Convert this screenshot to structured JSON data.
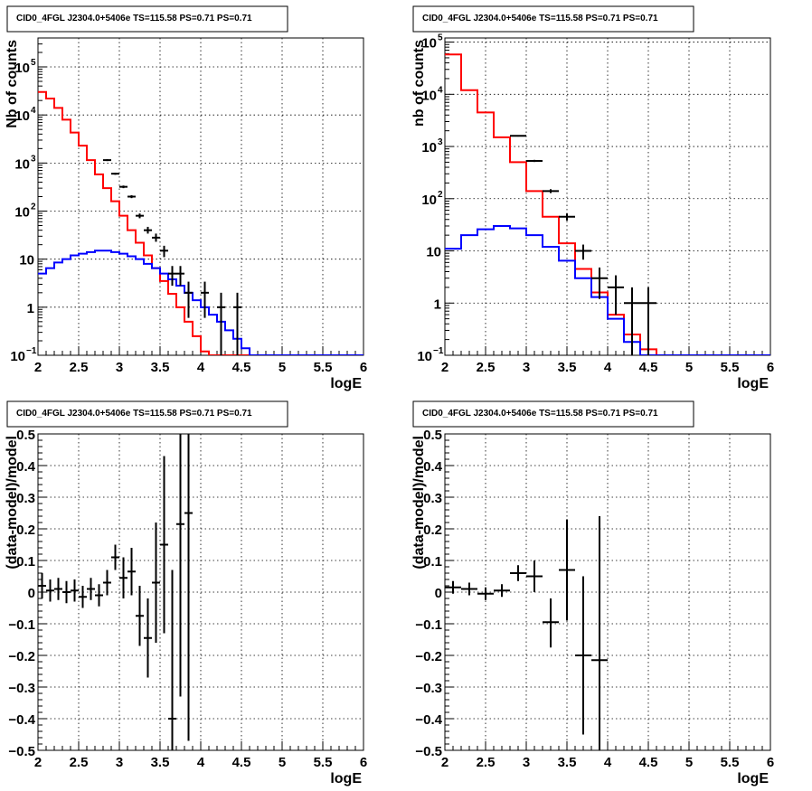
{
  "chart_data": [
    {
      "id": "top-left",
      "type": "line",
      "title": "CID0_4FGL J2304.0+5406e TS=115.58 PS=0.71 PS=0.71",
      "xlabel": "logE",
      "ylabel": "Nb of counts",
      "x_range": [
        2,
        6
      ],
      "y_scale": "log",
      "y_range": [
        0.1,
        400000
      ],
      "x_ticks": [
        "2",
        "2.5",
        "3",
        "3.5",
        "4",
        "4.5",
        "5",
        "5.5",
        "6"
      ],
      "y_ticks": [
        {
          "v": 0.1,
          "base": "10",
          "exp": "−1"
        },
        {
          "v": 1,
          "base": "1",
          "exp": ""
        },
        {
          "v": 10,
          "base": "10",
          "exp": ""
        },
        {
          "v": 100,
          "base": "10",
          "exp": "2"
        },
        {
          "v": 1000,
          "base": "10",
          "exp": "3"
        },
        {
          "v": 10000,
          "base": "10",
          "exp": "4"
        },
        {
          "v": 100000,
          "base": "10",
          "exp": "5"
        }
      ],
      "grid": true,
      "series": [
        {
          "kind": "step",
          "color": "#ff0000",
          "bin_width": 0.1,
          "x_start": 2.0,
          "values": [
            30000,
            22000,
            14000,
            8000,
            4300,
            2300,
            1150,
            580,
            300,
            160,
            80,
            40,
            22,
            12,
            6.5,
            3.5,
            1.9,
            1.0,
            0.5,
            0.25,
            0.12,
            0.1,
            0.1,
            0.1,
            0.1,
            0.1,
            0.1,
            0.1,
            0.1,
            0.1,
            0.1,
            0.1,
            0.1,
            0.1,
            0.1,
            0.1,
            0.1,
            0.1,
            0.1,
            0.1
          ]
        },
        {
          "kind": "step",
          "color": "#0000ff",
          "bin_width": 0.1,
          "x_start": 2.0,
          "values": [
            5,
            6.5,
            8.5,
            10,
            12,
            13,
            14,
            15,
            15,
            14,
            13,
            11.5,
            10,
            8,
            6.5,
            5,
            3.8,
            2.8,
            2,
            1.4,
            1.0,
            0.7,
            0.5,
            0.33,
            0.22,
            0.14,
            0.1,
            0.1,
            0.1,
            0.1,
            0.1,
            0.1,
            0.1,
            0.1,
            0.1,
            0.1,
            0.1,
            0.1,
            0.1,
            0.1
          ]
        },
        {
          "kind": "errorbars",
          "color": "#000000",
          "points": [
            {
              "x": 2.85,
              "xerr": 0.05,
              "y": 1150,
              "ylo": 1100,
              "yhi": 1200
            },
            {
              "x": 2.95,
              "xerr": 0.05,
              "y": 600,
              "ylo": 570,
              "yhi": 630
            },
            {
              "x": 3.05,
              "xerr": 0.05,
              "y": 320,
              "ylo": 300,
              "yhi": 340
            },
            {
              "x": 3.15,
              "xerr": 0.05,
              "y": 200,
              "ylo": 186,
              "yhi": 214
            },
            {
              "x": 3.25,
              "xerr": 0.05,
              "y": 80,
              "ylo": 71,
              "yhi": 89
            },
            {
              "x": 3.35,
              "xerr": 0.05,
              "y": 40,
              "ylo": 34,
              "yhi": 47
            },
            {
              "x": 3.45,
              "xerr": 0.05,
              "y": 28,
              "ylo": 23,
              "yhi": 34
            },
            {
              "x": 3.55,
              "xerr": 0.05,
              "y": 15,
              "ylo": 11,
              "yhi": 19
            },
            {
              "x": 3.65,
              "xerr": 0.05,
              "y": 5,
              "ylo": 2.8,
              "yhi": 7.2
            },
            {
              "x": 3.75,
              "xerr": 0.05,
              "y": 5,
              "ylo": 2.8,
              "yhi": 7.2
            },
            {
              "x": 3.85,
              "xerr": 0.05,
              "y": 2,
              "ylo": 0.6,
              "yhi": 3.4
            },
            {
              "x": 4.05,
              "xerr": 0.05,
              "y": 2,
              "ylo": 0.6,
              "yhi": 3.4
            },
            {
              "x": 4.25,
              "xerr": 0.05,
              "y": 1,
              "ylo": 0.1,
              "yhi": 2
            },
            {
              "x": 4.45,
              "xerr": 0.05,
              "y": 1,
              "ylo": 0.1,
              "yhi": 2
            }
          ]
        }
      ]
    },
    {
      "id": "top-right",
      "type": "line",
      "title": "CID0_4FGL J2304.0+5406e TS=115.58 PS=0.71 PS=0.71",
      "xlabel": "logE",
      "ylabel": "nb of counts",
      "x_range": [
        2,
        6
      ],
      "y_scale": "log",
      "y_range": [
        0.1,
        120000
      ],
      "x_ticks": [
        "2",
        "2.5",
        "3",
        "3.5",
        "4",
        "4.5",
        "5",
        "5.5",
        "6"
      ],
      "y_ticks": [
        {
          "v": 0.1,
          "base": "10",
          "exp": "−1"
        },
        {
          "v": 1,
          "base": "1",
          "exp": ""
        },
        {
          "v": 10,
          "base": "10",
          "exp": ""
        },
        {
          "v": 100,
          "base": "10",
          "exp": "2"
        },
        {
          "v": 1000,
          "base": "10",
          "exp": "3"
        },
        {
          "v": 10000,
          "base": "10",
          "exp": "4"
        },
        {
          "v": 100000,
          "base": "10",
          "exp": "5"
        }
      ],
      "grid": true,
      "series": [
        {
          "kind": "step",
          "color": "#ff0000",
          "bin_width": 0.2,
          "x_start": 2.0,
          "values": [
            58000,
            12000,
            4500,
            1500,
            500,
            140,
            45,
            14,
            4.5,
            1.6,
            0.6,
            0.25,
            0.13,
            0.1,
            0.1,
            0.1,
            0.1,
            0.1,
            0.1,
            0.1
          ]
        },
        {
          "kind": "step",
          "color": "#0000ff",
          "bin_width": 0.2,
          "x_start": 2.0,
          "values": [
            11,
            20,
            26,
            30,
            27,
            20,
            12,
            6.5,
            3,
            1.3,
            0.5,
            0.18,
            0.1,
            0.1,
            0.1,
            0.1,
            0.1,
            0.1,
            0.1,
            0.1
          ]
        },
        {
          "kind": "errorbars",
          "color": "#000000",
          "points": [
            {
              "x": 2.9,
              "xerr": 0.1,
              "y": 1600,
              "ylo": 1550,
              "yhi": 1650
            },
            {
              "x": 3.1,
              "xerr": 0.1,
              "y": 530,
              "ylo": 505,
              "yhi": 555
            },
            {
              "x": 3.3,
              "xerr": 0.1,
              "y": 140,
              "ylo": 128,
              "yhi": 152
            },
            {
              "x": 3.5,
              "xerr": 0.1,
              "y": 45,
              "ylo": 38,
              "yhi": 52
            },
            {
              "x": 3.7,
              "xerr": 0.1,
              "y": 10,
              "ylo": 6.8,
              "yhi": 13.2
            },
            {
              "x": 3.9,
              "xerr": 0.1,
              "y": 3,
              "ylo": 1.2,
              "yhi": 4.8
            },
            {
              "x": 4.1,
              "xerr": 0.1,
              "y": 2,
              "ylo": 0.6,
              "yhi": 3.4
            },
            {
              "x": 4.3,
              "xerr": 0.1,
              "y": 1,
              "ylo": 0.1,
              "yhi": 2
            },
            {
              "x": 4.5,
              "xerr": 0.1,
              "y": 1,
              "ylo": 0.1,
              "yhi": 2
            }
          ]
        }
      ]
    },
    {
      "id": "bottom-left",
      "type": "scatter",
      "title": "CID0_4FGL J2304.0+5406e TS=115.58 PS=0.71 PS=0.71",
      "xlabel": "logE",
      "ylabel": "(data-model)/model",
      "x_range": [
        2,
        6
      ],
      "y_scale": "linear",
      "y_range": [
        -0.5,
        0.5
      ],
      "x_ticks": [
        "2",
        "2.5",
        "3",
        "3.5",
        "4",
        "4.5",
        "5",
        "5.5",
        "6"
      ],
      "y_ticks": [
        {
          "v": -0.5,
          "label": "−0.5"
        },
        {
          "v": -0.4,
          "label": "−0.4"
        },
        {
          "v": -0.3,
          "label": "−0.3"
        },
        {
          "v": -0.2,
          "label": "−0.2"
        },
        {
          "v": -0.1,
          "label": "−0.1"
        },
        {
          "v": 0,
          "label": "0"
        },
        {
          "v": 0.1,
          "label": "0.1"
        },
        {
          "v": 0.2,
          "label": "0.2"
        },
        {
          "v": 0.3,
          "label": "0.3"
        },
        {
          "v": 0.4,
          "label": "0.4"
        },
        {
          "v": 0.5,
          "label": "0.5"
        }
      ],
      "grid": true,
      "series": [
        {
          "kind": "errorbars",
          "color": "#000000",
          "points": [
            {
              "x": 2.05,
              "xerr": 0.05,
              "y": 0.02,
              "ylo": -0.02,
              "yhi": 0.06
            },
            {
              "x": 2.15,
              "xerr": 0.05,
              "y": 0.005,
              "ylo": -0.03,
              "yhi": 0.04
            },
            {
              "x": 2.25,
              "xerr": 0.05,
              "y": 0.01,
              "ylo": -0.025,
              "yhi": 0.045
            },
            {
              "x": 2.35,
              "xerr": 0.05,
              "y": 0.0,
              "ylo": -0.035,
              "yhi": 0.035
            },
            {
              "x": 2.45,
              "xerr": 0.05,
              "y": 0.005,
              "ylo": -0.03,
              "yhi": 0.04
            },
            {
              "x": 2.55,
              "xerr": 0.05,
              "y": -0.015,
              "ylo": -0.05,
              "yhi": 0.02
            },
            {
              "x": 2.65,
              "xerr": 0.05,
              "y": 0.01,
              "ylo": -0.025,
              "yhi": 0.045
            },
            {
              "x": 2.75,
              "xerr": 0.05,
              "y": -0.01,
              "ylo": -0.045,
              "yhi": 0.025
            },
            {
              "x": 2.85,
              "xerr": 0.05,
              "y": 0.03,
              "ylo": -0.01,
              "yhi": 0.07
            },
            {
              "x": 2.95,
              "xerr": 0.05,
              "y": 0.11,
              "ylo": 0.07,
              "yhi": 0.15
            },
            {
              "x": 3.05,
              "xerr": 0.05,
              "y": 0.045,
              "ylo": -0.02,
              "yhi": 0.11
            },
            {
              "x": 3.15,
              "xerr": 0.05,
              "y": 0.065,
              "ylo": -0.01,
              "yhi": 0.14
            },
            {
              "x": 3.25,
              "xerr": 0.05,
              "y": -0.075,
              "ylo": -0.17,
              "yhi": 0.02
            },
            {
              "x": 3.35,
              "xerr": 0.05,
              "y": -0.145,
              "ylo": -0.27,
              "yhi": -0.02
            },
            {
              "x": 3.45,
              "xerr": 0.05,
              "y": 0.03,
              "ylo": -0.16,
              "yhi": 0.22
            },
            {
              "x": 3.55,
              "xerr": 0.05,
              "y": 0.15,
              "ylo": -0.13,
              "yhi": 0.43
            },
            {
              "x": 3.65,
              "xerr": 0.05,
              "y": -0.4,
              "ylo": -0.5,
              "yhi": 0.07
            },
            {
              "x": 3.75,
              "xerr": 0.05,
              "y": 0.215,
              "ylo": -0.33,
              "yhi": 0.5
            },
            {
              "x": 3.85,
              "xerr": 0.05,
              "y": 0.25,
              "ylo": -0.47,
              "yhi": 0.5
            }
          ]
        }
      ]
    },
    {
      "id": "bottom-right",
      "type": "scatter",
      "title": "CID0_4FGL J2304.0+5406e TS=115.58 PS=0.71 PS=0.71",
      "xlabel": "logE",
      "ylabel": "(data-model)/model",
      "x_range": [
        2,
        6
      ],
      "y_scale": "linear",
      "y_range": [
        -0.5,
        0.5
      ],
      "x_ticks": [
        "2",
        "2.5",
        "3",
        "3.5",
        "4",
        "4.5",
        "5",
        "5.5",
        "6"
      ],
      "y_ticks": [
        {
          "v": -0.5,
          "label": "−0.5"
        },
        {
          "v": -0.4,
          "label": "−0.4"
        },
        {
          "v": -0.3,
          "label": "−0.3"
        },
        {
          "v": -0.2,
          "label": "−0.2"
        },
        {
          "v": -0.1,
          "label": "−0.1"
        },
        {
          "v": 0,
          "label": "0"
        },
        {
          "v": 0.1,
          "label": "0.1"
        },
        {
          "v": 0.2,
          "label": "0.2"
        },
        {
          "v": 0.3,
          "label": "0.3"
        },
        {
          "v": 0.4,
          "label": "0.4"
        },
        {
          "v": 0.5,
          "label": "0.5"
        }
      ],
      "grid": true,
      "series": [
        {
          "kind": "errorbars",
          "color": "#000000",
          "points": [
            {
              "x": 2.1,
              "xerr": 0.1,
              "y": 0.015,
              "ylo": -0.005,
              "yhi": 0.035
            },
            {
              "x": 2.3,
              "xerr": 0.1,
              "y": 0.01,
              "ylo": -0.01,
              "yhi": 0.03
            },
            {
              "x": 2.5,
              "xerr": 0.1,
              "y": -0.005,
              "ylo": -0.025,
              "yhi": 0.015
            },
            {
              "x": 2.7,
              "xerr": 0.1,
              "y": 0.005,
              "ylo": -0.015,
              "yhi": 0.025
            },
            {
              "x": 2.9,
              "xerr": 0.1,
              "y": 0.06,
              "ylo": 0.035,
              "yhi": 0.085
            },
            {
              "x": 3.1,
              "xerr": 0.1,
              "y": 0.05,
              "ylo": 0.0,
              "yhi": 0.1
            },
            {
              "x": 3.3,
              "xerr": 0.1,
              "y": -0.095,
              "ylo": -0.175,
              "yhi": -0.02
            },
            {
              "x": 3.5,
              "xerr": 0.1,
              "y": 0.07,
              "ylo": -0.09,
              "yhi": 0.23
            },
            {
              "x": 3.7,
              "xerr": 0.1,
              "y": -0.2,
              "ylo": -0.45,
              "yhi": 0.05
            },
            {
              "x": 3.9,
              "xerr": 0.1,
              "y": -0.215,
              "ylo": -0.5,
              "yhi": 0.24
            }
          ]
        }
      ]
    }
  ]
}
